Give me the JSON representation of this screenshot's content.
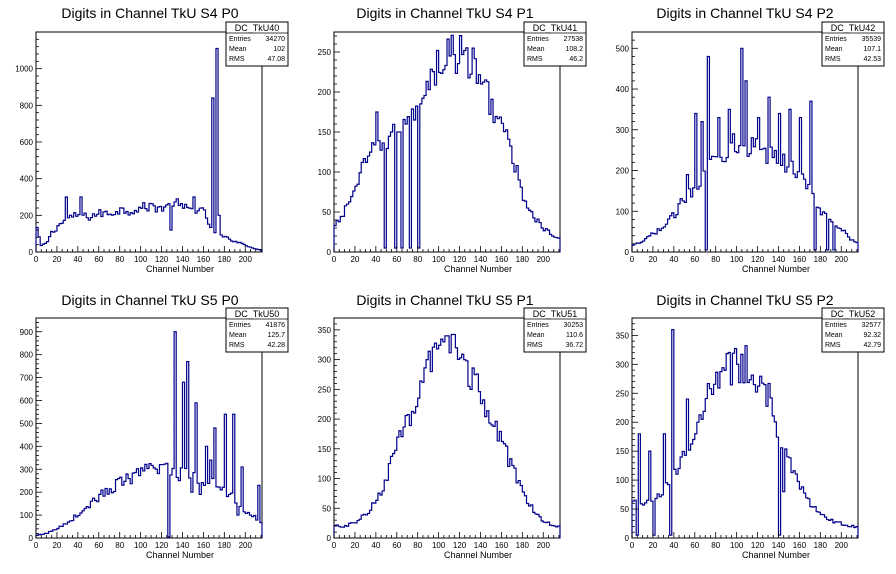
{
  "chart_data": [
    {
      "type": "histogram",
      "title": "Digits in Channel TkU S4 P0",
      "xlabel": "Channel Number",
      "ylabel": "",
      "xlim": [
        0,
        216
      ],
      "ylim": [
        0,
        1200
      ],
      "xticks": [
        0,
        20,
        40,
        60,
        80,
        100,
        120,
        140,
        160,
        180,
        200
      ],
      "yticks": [
        0,
        200,
        400,
        600,
        800,
        1000
      ],
      "bin_width": 2,
      "anchors": [
        [
          0,
          140
        ],
        [
          2,
          120
        ],
        [
          4,
          30
        ],
        [
          6,
          40
        ],
        [
          10,
          45
        ],
        [
          14,
          100
        ],
        [
          18,
          120
        ],
        [
          22,
          150
        ],
        [
          26,
          160
        ],
        [
          30,
          180
        ],
        [
          40,
          200
        ],
        [
          50,
          190
        ],
        [
          60,
          210
        ],
        [
          70,
          210
        ],
        [
          80,
          230
        ],
        [
          90,
          225
        ],
        [
          100,
          240
        ],
        [
          110,
          250
        ],
        [
          120,
          240
        ],
        [
          130,
          250
        ],
        [
          140,
          240
        ],
        [
          150,
          230
        ],
        [
          160,
          220
        ],
        [
          166,
          150
        ],
        [
          170,
          100
        ],
        [
          180,
          80
        ],
        [
          190,
          60
        ],
        [
          200,
          40
        ],
        [
          210,
          15
        ],
        [
          216,
          10
        ]
      ],
      "spikes": [
        [
          28,
          300
        ],
        [
          42,
          300
        ],
        [
          128,
          120
        ],
        [
          134,
          290
        ],
        [
          150,
          300
        ],
        [
          168,
          840
        ],
        [
          172,
          1110
        ],
        [
          174,
          200
        ]
      ],
      "stats": {
        "name": "DC_TkU40",
        "entries": "34270",
        "mean": "102",
        "rms": "47.08"
      }
    },
    {
      "type": "histogram",
      "title": "Digits in Channel TkU S4 P1",
      "xlabel": "Channel Number",
      "ylabel": "",
      "xlim": [
        0,
        216
      ],
      "ylim": [
        0,
        275
      ],
      "xticks": [
        0,
        20,
        40,
        60,
        80,
        100,
        120,
        140,
        160,
        180,
        200
      ],
      "yticks": [
        0,
        50,
        100,
        150,
        200,
        250
      ],
      "bin_width": 2,
      "anchors": [
        [
          0,
          30
        ],
        [
          10,
          50
        ],
        [
          20,
          80
        ],
        [
          30,
          110
        ],
        [
          40,
          130
        ],
        [
          50,
          140
        ],
        [
          60,
          160
        ],
        [
          70,
          170
        ],
        [
          80,
          190
        ],
        [
          90,
          215
        ],
        [
          100,
          235
        ],
        [
          110,
          250
        ],
        [
          120,
          245
        ],
        [
          130,
          240
        ],
        [
          140,
          215
        ],
        [
          150,
          190
        ],
        [
          160,
          160
        ],
        [
          170,
          120
        ],
        [
          180,
          75
        ],
        [
          190,
          45
        ],
        [
          200,
          30
        ],
        [
          210,
          20
        ],
        [
          216,
          15
        ]
      ],
      "spikes": [
        [
          48,
          5
        ],
        [
          54,
          150
        ],
        [
          58,
          5
        ],
        [
          62,
          150
        ],
        [
          64,
          5
        ],
        [
          68,
          160
        ],
        [
          72,
          5
        ],
        [
          76,
          165
        ],
        [
          80,
          5
        ],
        [
          40,
          175
        ]
      ],
      "stats": {
        "name": "DC_TkU41",
        "entries": "27538",
        "mean": "108.2",
        "rms": "46.2"
      }
    },
    {
      "type": "histogram",
      "title": "Digits in Channel TkU S4 P2",
      "xlabel": "Channel Number",
      "ylabel": "",
      "xlim": [
        0,
        216
      ],
      "ylim": [
        0,
        540
      ],
      "xticks": [
        0,
        20,
        40,
        60,
        80,
        100,
        120,
        140,
        160,
        180,
        200
      ],
      "yticks": [
        0,
        100,
        200,
        300,
        400,
        500
      ],
      "bin_width": 2,
      "anchors": [
        [
          0,
          15
        ],
        [
          10,
          25
        ],
        [
          20,
          45
        ],
        [
          30,
          60
        ],
        [
          40,
          90
        ],
        [
          50,
          130
        ],
        [
          60,
          160
        ],
        [
          70,
          200
        ],
        [
          80,
          230
        ],
        [
          90,
          250
        ],
        [
          100,
          270
        ],
        [
          110,
          260
        ],
        [
          120,
          250
        ],
        [
          130,
          240
        ],
        [
          140,
          230
        ],
        [
          150,
          210
        ],
        [
          160,
          200
        ],
        [
          170,
          150
        ],
        [
          180,
          100
        ],
        [
          190,
          80
        ],
        [
          200,
          60
        ],
        [
          210,
          30
        ],
        [
          216,
          20
        ]
      ],
      "spikes": [
        [
          52,
          190
        ],
        [
          60,
          340
        ],
        [
          66,
          320
        ],
        [
          70,
          5
        ],
        [
          72,
          480
        ],
        [
          82,
          330
        ],
        [
          92,
          350
        ],
        [
          96,
          290
        ],
        [
          104,
          500
        ],
        [
          108,
          420
        ],
        [
          120,
          330
        ],
        [
          130,
          380
        ],
        [
          140,
          340
        ],
        [
          150,
          350
        ],
        [
          160,
          330
        ],
        [
          170,
          370
        ],
        [
          174,
          5
        ],
        [
          186,
          5
        ],
        [
          192,
          5
        ]
      ],
      "stats": {
        "name": "DC_TkU42",
        "entries": "35539",
        "mean": "107.1",
        "rms": "42.53"
      }
    },
    {
      "type": "histogram",
      "title": "Digits in Channel TkU S5 P0",
      "xlabel": "Channel Number",
      "ylabel": "",
      "xlim": [
        0,
        216
      ],
      "ylim": [
        0,
        960
      ],
      "xticks": [
        0,
        20,
        40,
        60,
        80,
        100,
        120,
        140,
        160,
        180,
        200
      ],
      "yticks": [
        0,
        100,
        200,
        300,
        400,
        500,
        600,
        700,
        800,
        900
      ],
      "bin_width": 2,
      "anchors": [
        [
          0,
          10
        ],
        [
          10,
          20
        ],
        [
          20,
          40
        ],
        [
          30,
          70
        ],
        [
          40,
          100
        ],
        [
          50,
          140
        ],
        [
          60,
          180
        ],
        [
          70,
          210
        ],
        [
          80,
          240
        ],
        [
          90,
          260
        ],
        [
          100,
          280
        ],
        [
          110,
          300
        ],
        [
          120,
          310
        ],
        [
          126,
          320
        ],
        [
          130,
          300
        ],
        [
          140,
          280
        ],
        [
          150,
          270
        ],
        [
          160,
          260
        ],
        [
          170,
          240
        ],
        [
          180,
          210
        ],
        [
          190,
          170
        ],
        [
          200,
          120
        ],
        [
          210,
          90
        ],
        [
          216,
          60
        ]
      ],
      "spikes": [
        [
          126,
          5
        ],
        [
          132,
          900
        ],
        [
          136,
          250
        ],
        [
          140,
          680
        ],
        [
          144,
          770
        ],
        [
          148,
          200
        ],
        [
          152,
          590
        ],
        [
          156,
          190
        ],
        [
          162,
          400
        ],
        [
          166,
          340
        ],
        [
          170,
          480
        ],
        [
          176,
          210
        ],
        [
          180,
          540
        ],
        [
          184,
          190
        ],
        [
          188,
          540
        ],
        [
          192,
          100
        ],
        [
          196,
          310
        ],
        [
          204,
          100
        ],
        [
          212,
          230
        ]
      ],
      "stats": {
        "name": "DC_TkU50",
        "entries": "41876",
        "mean": "125.7",
        "rms": "42.28"
      }
    },
    {
      "type": "histogram",
      "title": "Digits in Channel TkU S5 P1",
      "xlabel": "Channel Number",
      "ylabel": "",
      "xlim": [
        0,
        216
      ],
      "ylim": [
        0,
        370
      ],
      "xticks": [
        0,
        20,
        40,
        60,
        80,
        100,
        120,
        140,
        160,
        180,
        200
      ],
      "yticks": [
        0,
        50,
        100,
        150,
        200,
        250,
        300,
        350
      ],
      "bin_width": 2,
      "anchors": [
        [
          0,
          20
        ],
        [
          10,
          20
        ],
        [
          20,
          25
        ],
        [
          30,
          40
        ],
        [
          40,
          60
        ],
        [
          50,
          100
        ],
        [
          60,
          150
        ],
        [
          70,
          200
        ],
        [
          80,
          240
        ],
        [
          90,
          280
        ],
        [
          100,
          310
        ],
        [
          110,
          320
        ],
        [
          120,
          310
        ],
        [
          130,
          280
        ],
        [
          140,
          240
        ],
        [
          150,
          200
        ],
        [
          160,
          160
        ],
        [
          170,
          120
        ],
        [
          180,
          80
        ],
        [
          190,
          50
        ],
        [
          200,
          30
        ],
        [
          210,
          20
        ],
        [
          216,
          20
        ]
      ],
      "spikes": [
        [
          88,
          300
        ],
        [
          104,
          330
        ],
        [
          108,
          340
        ],
        [
          116,
          320
        ],
        [
          130,
          250
        ]
      ],
      "stats": {
        "name": "DC_TkU51",
        "entries": "30253",
        "mean": "110.6",
        "rms": "36.72"
      }
    },
    {
      "type": "histogram",
      "title": "Digits in Channel TkU S5 P2",
      "xlabel": "Channel Number",
      "ylabel": "",
      "xlim": [
        0,
        216
      ],
      "ylim": [
        0,
        380
      ],
      "xticks": [
        0,
        20,
        40,
        60,
        80,
        100,
        120,
        140,
        160,
        180,
        200
      ],
      "yticks": [
        0,
        50,
        100,
        150,
        200,
        250,
        300,
        350
      ],
      "bin_width": 2,
      "anchors": [
        [
          0,
          60
        ],
        [
          10,
          60
        ],
        [
          20,
          70
        ],
        [
          30,
          80
        ],
        [
          40,
          110
        ],
        [
          50,
          150
        ],
        [
          60,
          190
        ],
        [
          70,
          230
        ],
        [
          80,
          270
        ],
        [
          90,
          290
        ],
        [
          100,
          300
        ],
        [
          110,
          300
        ],
        [
          120,
          280
        ],
        [
          130,
          250
        ],
        [
          140,
          180
        ],
        [
          150,
          130
        ],
        [
          160,
          90
        ],
        [
          170,
          60
        ],
        [
          180,
          40
        ],
        [
          190,
          30
        ],
        [
          200,
          25
        ],
        [
          210,
          20
        ],
        [
          216,
          20
        ]
      ],
      "spikes": [
        [
          4,
          5
        ],
        [
          6,
          180
        ],
        [
          16,
          150
        ],
        [
          20,
          5
        ],
        [
          30,
          180
        ],
        [
          36,
          5
        ],
        [
          38,
          360
        ],
        [
          44,
          120
        ],
        [
          52,
          240
        ],
        [
          62,
          200
        ],
        [
          140,
          5
        ],
        [
          144,
          80
        ]
      ],
      "stats": {
        "name": "DC_TkU52",
        "entries": "32577",
        "mean": "92.32",
        "rms": "42.79"
      }
    }
  ],
  "colors": {
    "line": "#00008b",
    "frame": "#000000",
    "background": "#ffffff"
  },
  "stat_labels": {
    "entries": "Entries",
    "mean": "Mean",
    "rms": "RMS"
  }
}
